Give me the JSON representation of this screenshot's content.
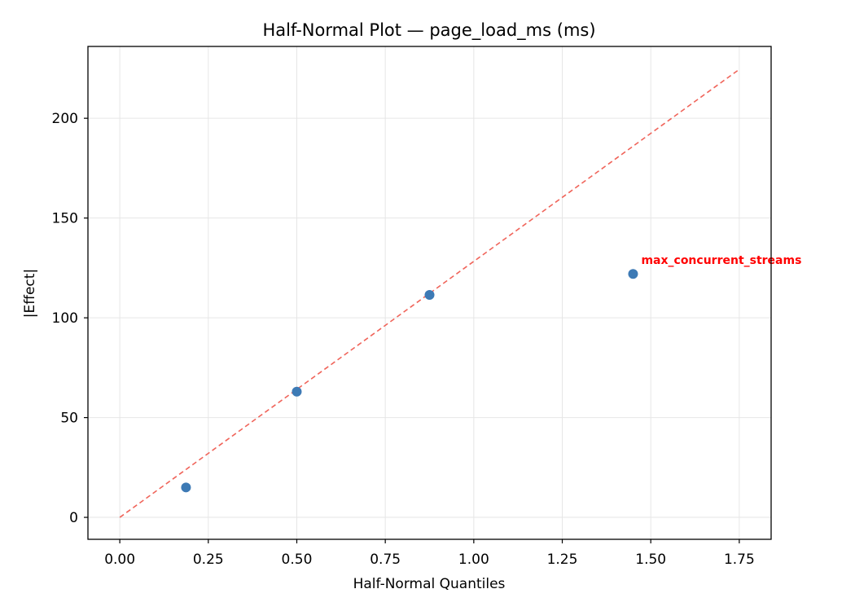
{
  "chart_data": {
    "type": "scatter",
    "title": "Half-Normal Plot — page_load_ms (ms)",
    "xlabel": "Half-Normal Quantiles",
    "ylabel": "|Effect|",
    "xlim": [
      -0.09,
      1.84
    ],
    "ylim": [
      -11,
      236
    ],
    "xticks": [
      0.0,
      0.25,
      0.5,
      0.75,
      1.0,
      1.25,
      1.5,
      1.75
    ],
    "xtick_labels": [
      "0.00",
      "0.25",
      "0.50",
      "0.75",
      "1.00",
      "1.25",
      "1.50",
      "1.75"
    ],
    "yticks": [
      0,
      50,
      100,
      150,
      200
    ],
    "ytick_labels": [
      "0",
      "50",
      "100",
      "150",
      "200"
    ],
    "grid": true,
    "points": [
      {
        "x": 0.187,
        "y": 15
      },
      {
        "x": 0.5,
        "y": 63
      },
      {
        "x": 0.875,
        "y": 111.5
      },
      {
        "x": 1.45,
        "y": 122,
        "label": "max_concurrent_streams"
      }
    ],
    "reference_line": {
      "x": [
        0,
        1.75
      ],
      "y": [
        0,
        224.5
      ],
      "style": "dashed"
    },
    "colors": {
      "points": "#3d7ab5",
      "reference_line": "#f0645a",
      "annotation": "#ff0000",
      "grid": "#e6e6e6"
    }
  }
}
